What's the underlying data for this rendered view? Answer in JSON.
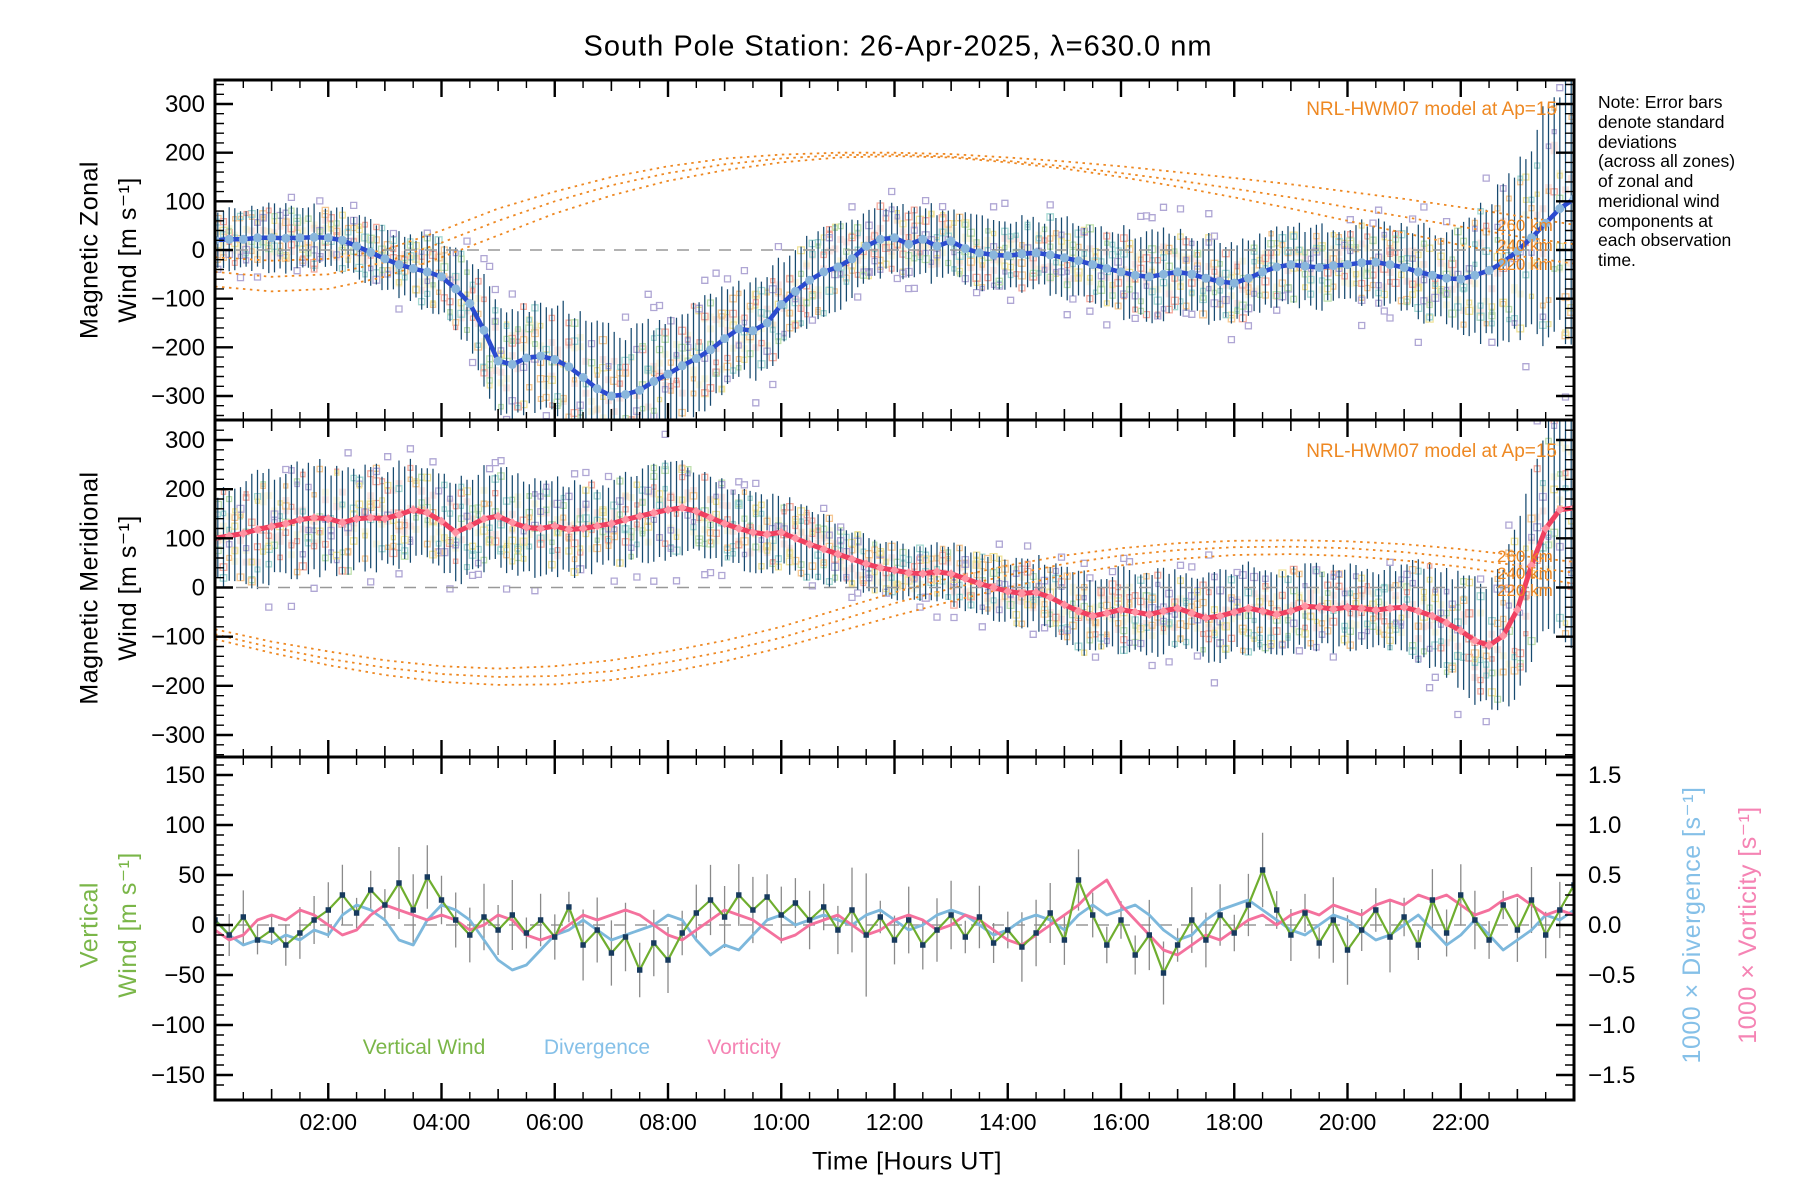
{
  "seed": 20250426,
  "title": "South Pole Station: 26-Apr-2025, λ=630.0 nm",
  "note": "Note: Error bars\ndenote standard\ndeviations\n(across all zones)\nof zonal and\nmeridional wind\ncomponents at\neach observation\ntime.",
  "model_label": "NRL-HWM07 model at Ap=15",
  "legend": {
    "vertical_wind": "Vertical Wind",
    "divergence": "Divergence",
    "vorticity": "Vorticity"
  },
  "x_axis": {
    "label": "Time [Hours UT]",
    "range_hours": [
      0,
      24
    ],
    "tick_hours": [
      2,
      4,
      6,
      8,
      10,
      12,
      14,
      16,
      18,
      20,
      22
    ],
    "tick_labels": [
      "02:00",
      "04:00",
      "06:00",
      "08:00",
      "10:00",
      "12:00",
      "14:00",
      "16:00",
      "18:00",
      "20:00",
      "22:00"
    ]
  },
  "colors": {
    "zonal_line": "#2b4bd0",
    "zonal_marker": "#8ab6dc",
    "merid_line": "#f04060",
    "merid_marker": "#ff93a3",
    "errbar_navy": "#174a70",
    "model_orange": "#ee8822",
    "orange_text": "#ee8822",
    "scatter_palette": [
      "#b6aad6",
      "#f5ab9e",
      "#f0e39a",
      "#bfe0ae",
      "#a5d8d2",
      "#f6c893"
    ],
    "band_palette": [
      "#f6b3a8",
      "#f3e6a2"
    ],
    "outlier": "#afa6d4",
    "green_line": "#6fae2f",
    "green_marker": "#173a5e",
    "gray_errbar": "#8a8a8a",
    "div_blue": "#7db8dc",
    "vort_pink": "#f4719d",
    "zero_dash": "#999999",
    "legend_green": "#7ab648",
    "legend_blue": "#85c0e8",
    "legend_pink": "#f584b4"
  },
  "chart_data": [
    {
      "type": "line",
      "name": "magnetic_zonal_wind",
      "ylabel_line1": "Magnetic Zonal",
      "ylabel_line2": "Wind [m s⁻¹]",
      "ylim": [
        -350,
        350
      ],
      "ytick_values": [
        300,
        200,
        100,
        0,
        -100,
        -200,
        -300
      ],
      "ytick_labels": [
        "300",
        "200",
        "100",
        "0",
        "−100",
        "−200",
        "−300"
      ],
      "x_step_hours": 0.25,
      "mean": [
        20,
        22,
        22,
        25,
        25,
        24,
        25,
        26,
        25,
        20,
        8,
        -5,
        -18,
        -30,
        -38,
        -45,
        -55,
        -80,
        -110,
        -165,
        -228,
        -235,
        -222,
        -218,
        -225,
        -240,
        -262,
        -285,
        -300,
        -297,
        -288,
        -270,
        -255,
        -238,
        -223,
        -205,
        -182,
        -162,
        -166,
        -150,
        -112,
        -85,
        -62,
        -45,
        -35,
        -18,
        8,
        22,
        25,
        12,
        22,
        8,
        18,
        3,
        -6,
        -10,
        -12,
        -8,
        -6,
        -10,
        -16,
        -22,
        -30,
        -38,
        -45,
        -52,
        -55,
        -50,
        -45,
        -50,
        -58,
        -65,
        -68,
        -58,
        -45,
        -35,
        -30,
        -33,
        -36,
        -32,
        -30,
        -26,
        -25,
        -30,
        -36,
        -45,
        -52,
        -58,
        -60,
        -52,
        -42,
        -25,
        -2,
        25,
        55,
        85,
        105
      ],
      "std_step_hours": 1,
      "std": [
        55,
        65,
        60,
        60,
        75,
        110,
        110,
        130,
        115,
        100,
        90,
        80,
        70,
        75,
        70,
        75,
        85,
        85,
        80,
        82,
        78,
        85,
        100,
        180,
        280
      ],
      "model_altitude_labels": [
        "260 km",
        "240 km",
        "220 km"
      ],
      "model_step_hours": 1,
      "models": [
        [
          -15,
          -22,
          -18,
          0,
          40,
          85,
          120,
          150,
          172,
          188,
          196,
          200,
          200,
          197,
          190,
          182,
          172,
          160,
          148,
          135,
          120,
          105,
          88,
          70,
          52
        ],
        [
          -45,
          -55,
          -50,
          -25,
          15,
          60,
          100,
          133,
          158,
          176,
          188,
          195,
          196,
          192,
          183,
          172,
          158,
          143,
          126,
          108,
          88,
          68,
          48,
          28,
          12
        ],
        [
          -75,
          -85,
          -80,
          -55,
          -15,
          30,
          75,
          112,
          142,
          164,
          180,
          190,
          193,
          190,
          180,
          167,
          150,
          130,
          108,
          85,
          60,
          35,
          10,
          -12,
          -28
        ]
      ]
    },
    {
      "type": "line",
      "name": "magnetic_meridional_wind",
      "ylabel_line1": "Magnetic Meridional",
      "ylabel_line2": "Wind [m s⁻¹]",
      "ylim": [
        -350,
        350
      ],
      "ytick_values": [
        300,
        200,
        100,
        0,
        -100,
        -200,
        -300
      ],
      "ytick_labels": [
        "300",
        "200",
        "100",
        "0",
        "−100",
        "−200",
        "−300"
      ],
      "x_step_hours": 0.25,
      "mean": [
        100,
        105,
        110,
        118,
        124,
        130,
        138,
        142,
        140,
        132,
        140,
        142,
        140,
        148,
        158,
        152,
        135,
        112,
        125,
        140,
        145,
        132,
        122,
        120,
        125,
        118,
        120,
        125,
        130,
        138,
        145,
        152,
        158,
        162,
        155,
        142,
        130,
        120,
        112,
        108,
        112,
        100,
        88,
        78,
        68,
        58,
        48,
        40,
        35,
        30,
        28,
        32,
        28,
        18,
        8,
        0,
        -8,
        -12,
        -10,
        -20,
        -35,
        -48,
        -58,
        -52,
        -45,
        -50,
        -55,
        -48,
        -42,
        -52,
        -62,
        -58,
        -50,
        -42,
        -48,
        -55,
        -48,
        -38,
        -40,
        -44,
        -40,
        -42,
        -46,
        -42,
        -40,
        -48,
        -58,
        -72,
        -88,
        -108,
        -118,
        -98,
        -45,
        45,
        120,
        158,
        162
      ],
      "std_step_hours": 1,
      "std": [
        95,
        110,
        105,
        95,
        105,
        100,
        90,
        85,
        90,
        80,
        72,
        62,
        55,
        58,
        62,
        75,
        82,
        78,
        85,
        82,
        80,
        88,
        105,
        160,
        260
      ],
      "model_altitude_labels": [
        "260 km",
        "240 km",
        "220 km"
      ],
      "model_step_hours": 1,
      "models": [
        [
          -85,
          -110,
          -130,
          -148,
          -160,
          -165,
          -160,
          -148,
          -130,
          -108,
          -80,
          -45,
          -10,
          20,
          45,
          65,
          80,
          90,
          95,
          96,
          94,
          88,
          78,
          65,
          52
        ],
        [
          -95,
          -122,
          -145,
          -163,
          -176,
          -182,
          -180,
          -170,
          -152,
          -130,
          -102,
          -68,
          -32,
          -2,
          25,
          48,
          65,
          76,
          82,
          83,
          80,
          72,
          60,
          45,
          30
        ],
        [
          -105,
          -133,
          -158,
          -178,
          -192,
          -198,
          -197,
          -188,
          -172,
          -150,
          -122,
          -90,
          -58,
          -28,
          0,
          25,
          45,
          58,
          66,
          68,
          64,
          55,
          42,
          25,
          8
        ]
      ]
    },
    {
      "type": "line",
      "name": "vertical_wind_divergence_vorticity",
      "ylabel_line1": "Vertical",
      "ylabel_line2": "Wind [m s⁻¹]",
      "ylim": [
        -175,
        175
      ],
      "ytick_values": [
        150,
        100,
        50,
        0,
        -50,
        -100,
        -150
      ],
      "ytick_labels": [
        "150",
        "100",
        "50",
        "0",
        "−50",
        "−100",
        "−150"
      ],
      "right_tick_values": [
        1.5,
        1.0,
        0.5,
        0.0,
        -0.5,
        -1.0,
        -1.5
      ],
      "right_tick_labels": [
        "1.5",
        "1.0",
        "0.5",
        "0.0",
        "−0.5",
        "−1.0",
        "−1.5"
      ],
      "x_step_hours": 0.25,
      "series": [
        {
          "name": "Vertical Wind",
          "axis": "left",
          "values": [
            5,
            -10,
            8,
            -15,
            -5,
            -20,
            -8,
            5,
            15,
            30,
            12,
            35,
            20,
            42,
            15,
            48,
            25,
            5,
            -10,
            8,
            -5,
            10,
            -8,
            5,
            -12,
            18,
            -20,
            -5,
            -28,
            -12,
            -45,
            -18,
            -35,
            -8,
            12,
            25,
            8,
            30,
            15,
            28,
            10,
            22,
            5,
            18,
            -5,
            15,
            -10,
            8,
            -15,
            5,
            -20,
            -5,
            10,
            -12,
            8,
            -18,
            -5,
            -22,
            -8,
            12,
            -15,
            45,
            10,
            -20,
            5,
            -30,
            -10,
            -48,
            -20,
            5,
            -15,
            10,
            -8,
            20,
            55,
            15,
            -10,
            12,
            -18,
            5,
            -25,
            -5,
            15,
            -12,
            8,
            -20,
            25,
            -8,
            30,
            5,
            -15,
            20,
            -5,
            25,
            -10,
            15,
            40
          ]
        },
        {
          "name": "Divergence",
          "axis": "right",
          "scale_label": "1000 × Divergence [s⁻¹]",
          "values": [
            0.05,
            -0.1,
            -0.2,
            -0.15,
            -0.18,
            -0.1,
            -0.15,
            -0.05,
            -0.1,
            0.1,
            0.2,
            0.15,
            0.05,
            -0.15,
            -0.2,
            0.05,
            0.2,
            0.15,
            0.05,
            -0.15,
            -0.35,
            -0.45,
            -0.4,
            -0.25,
            -0.1,
            -0.05,
            0.05,
            -0.05,
            -0.15,
            -0.1,
            -0.05,
            0,
            0.1,
            0.05,
            -0.15,
            -0.3,
            -0.2,
            -0.25,
            -0.1,
            0.05,
            0.1,
            0,
            0.05,
            0.1,
            0.05,
            0,
            0.1,
            0.15,
            0.05,
            -0.05,
            0,
            0.1,
            0.15,
            0.1,
            0,
            -0.1,
            -0.05,
            0.05,
            0.1,
            0.05,
            -0.05,
            0.1,
            0.2,
            0.1,
            0.15,
            0.2,
            0.1,
            -0.05,
            -0.15,
            -0.1,
            0.05,
            0.15,
            0.2,
            0.25,
            0.15,
            0.05,
            -0.05,
            -0.1,
            0,
            0.1,
            0.05,
            -0.05,
            -0.15,
            -0.1,
            0,
            0.1,
            -0.05,
            -0.2,
            -0.1,
            0.05,
            -0.1,
            -0.25,
            -0.15,
            -0.05,
            0.1,
            0.05,
            0.15
          ]
        },
        {
          "name": "Vorticity",
          "axis": "right",
          "scale_label": "1000 × Vorticity [s⁻¹]",
          "values": [
            -0.05,
            -0.15,
            -0.1,
            0.05,
            0.1,
            0.05,
            0.15,
            0.1,
            0,
            -0.1,
            -0.05,
            0.1,
            0.2,
            0.15,
            0.1,
            0.05,
            0.1,
            0.05,
            -0.05,
            0,
            0.1,
            0.05,
            -0.1,
            -0.15,
            -0.1,
            0,
            0.1,
            0.05,
            0.1,
            0.15,
            0.1,
            0,
            -0.1,
            -0.15,
            -0.05,
            0.05,
            0.15,
            0.1,
            0.05,
            -0.05,
            -0.15,
            -0.1,
            0,
            0.05,
            0.1,
            0,
            -0.1,
            -0.05,
            0.05,
            0.1,
            0.05,
            -0.05,
            0,
            0.1,
            0.05,
            -0.05,
            -0.15,
            -0.2,
            -0.1,
            0,
            0.1,
            0.2,
            0.35,
            0.45,
            0.2,
            0.05,
            -0.1,
            -0.25,
            -0.3,
            -0.2,
            -0.1,
            -0.15,
            -0.05,
            0.05,
            0.1,
            0,
            0.1,
            0.15,
            0.1,
            0.2,
            0.15,
            0.1,
            0.2,
            0.25,
            0.2,
            0.3,
            0.25,
            0.3,
            0.2,
            0.1,
            0.15,
            0.25,
            0.3,
            0.2,
            0.1,
            0.15,
            0.1
          ]
        }
      ],
      "errbar_half_range": [
        14,
        36
      ]
    }
  ]
}
